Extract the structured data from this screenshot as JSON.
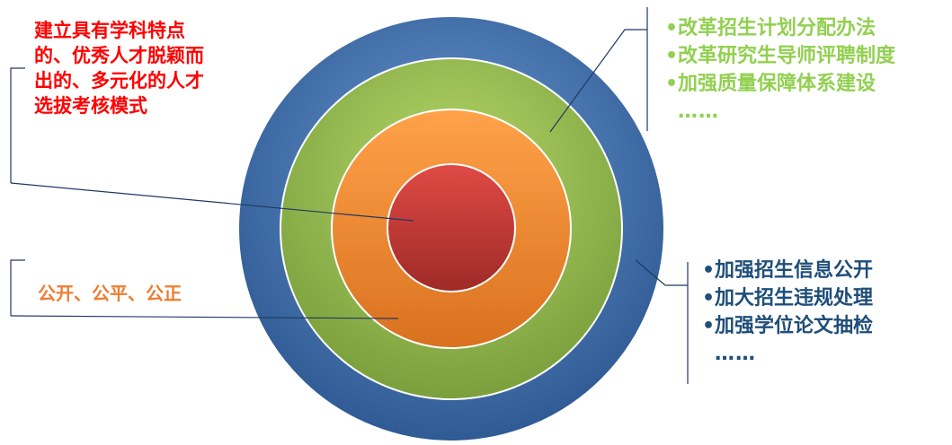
{
  "diagram": {
    "rings": [
      {
        "name": "outer-ring",
        "color": "#4f81bd"
      },
      {
        "name": "green-ring",
        "color": "#9bbb59"
      },
      {
        "name": "orange-ring",
        "color": "#f79646"
      },
      {
        "name": "center-circle",
        "color": "#c0504d"
      }
    ]
  },
  "labels": {
    "core": {
      "lines": [
        "建立具有学科特点",
        "的、优秀人才脱颖而",
        "出的、多元化的人才",
        "选拔考核模式"
      ],
      "color": "#ff0000"
    },
    "fairness": {
      "text": "公开、公平、公正",
      "color": "#ed7d31"
    },
    "reform": {
      "lines": [
        "•改革招生计划分配办法",
        "•改革研究生导师评聘制度",
        "•加强质量保障体系建设",
        "……"
      ],
      "color": "#92d050"
    },
    "supervision": {
      "lines": [
        "•加强招生信息公开",
        "•加大招生违规处理",
        "•加强学位论文抽检",
        "……"
      ],
      "color": "#1f4e79"
    }
  }
}
